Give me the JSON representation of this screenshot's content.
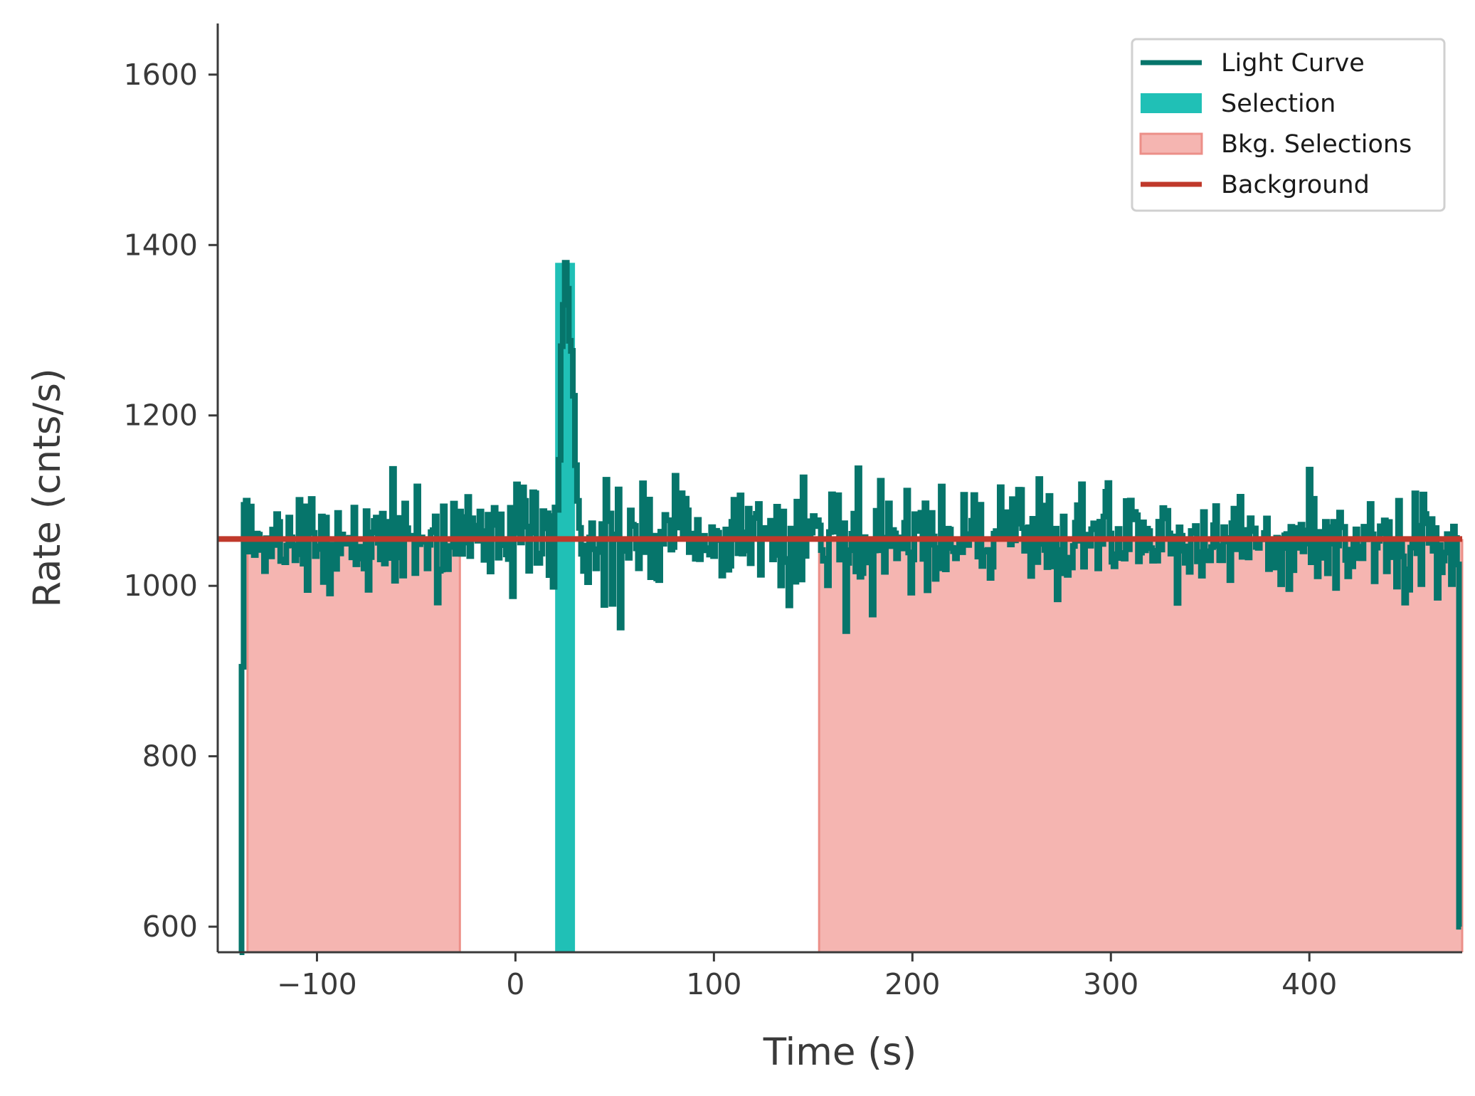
{
  "chart_data": {
    "type": "line",
    "xlabel": "Time (s)",
    "ylabel": "Rate (cnts/s)",
    "xlim": [
      -150,
      477
    ],
    "ylim": [
      570,
      1660
    ],
    "xticks": [
      -100,
      0,
      100,
      200,
      300,
      400
    ],
    "yticks": [
      600,
      800,
      1000,
      1200,
      1400,
      1600
    ],
    "xtick_labels": [
      "−100",
      "0",
      "100",
      "200",
      "300",
      "400"
    ],
    "ytick_labels": [
      "600",
      "800",
      "1000",
      "1200",
      "1400",
      "1600"
    ],
    "grid": false,
    "legend_position": "top-right",
    "legend": [
      {
        "label": "Light Curve",
        "kind": "line",
        "color": "#06756b"
      },
      {
        "label": "Selection",
        "kind": "patch",
        "color": "#20c0b6"
      },
      {
        "label": "Bkg. Selections",
        "kind": "patch",
        "color": "#f5b5b1",
        "edge": "#ec8f88"
      },
      {
        "label": "Background",
        "kind": "line",
        "color": "#c0392b"
      }
    ],
    "background_level": 1055,
    "background_color": "#c0392b",
    "light_curve_color": "#06756b",
    "selection": {
      "x": [
        20,
        30
      ],
      "color": "#20c0b6"
    },
    "bkg_selections": [
      {
        "x": [
          -135,
          -28
        ]
      },
      {
        "x": [
          153,
          477
        ]
      }
    ],
    "bkg_fill_color": "#f5b5b1",
    "bkg_edge_color": "#ec8f88",
    "light_curve": {
      "bin": 1.024,
      "x_start": -139,
      "x_end": 477,
      "start_values": [
        0,
        905,
        1095,
        1100
      ],
      "end_value": 600,
      "noise_mean": 1055,
      "noise_sigma": 30,
      "pulse": {
        "x": [
          20,
          32
        ],
        "peak_x": 25,
        "peak_y": 1383
      }
    }
  }
}
